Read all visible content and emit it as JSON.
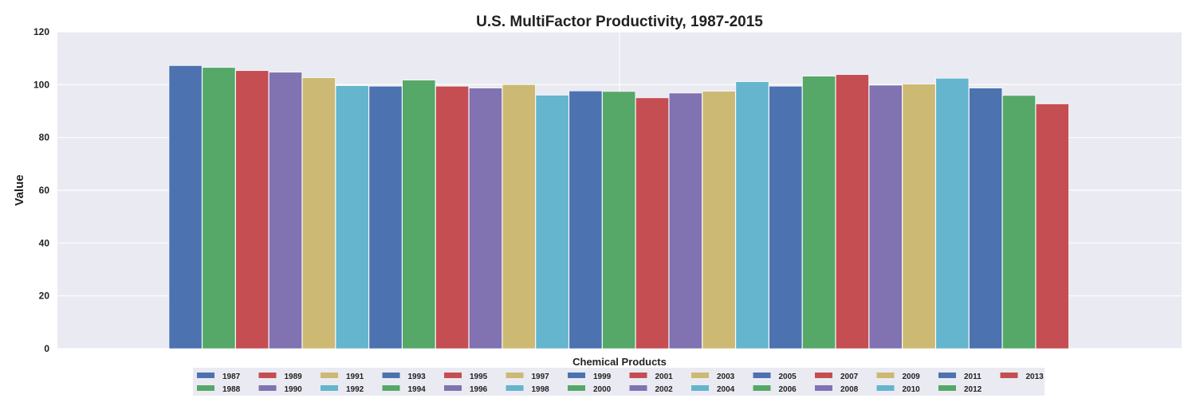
{
  "chart_data": {
    "type": "bar",
    "title": "U.S. MultiFactor Productivity, 1987-2015",
    "xlabel": "Chemical Products",
    "ylabel": "Value",
    "ylim": [
      0,
      120
    ],
    "yticks": [
      0,
      20,
      40,
      60,
      80,
      100,
      120
    ],
    "grid": true,
    "legend_position": "bottom",
    "series": [
      {
        "name": "1987",
        "values": [
          107.2
        ],
        "color": "#4c72b0"
      },
      {
        "name": "1988",
        "values": [
          106.5
        ],
        "color": "#55a868"
      },
      {
        "name": "1989",
        "values": [
          105.3
        ],
        "color": "#c44e52"
      },
      {
        "name": "1990",
        "values": [
          104.7
        ],
        "color": "#8172b2"
      },
      {
        "name": "1991",
        "values": [
          102.6
        ],
        "color": "#ccb974"
      },
      {
        "name": "1992",
        "values": [
          99.6
        ],
        "color": "#64b5cd"
      },
      {
        "name": "1993",
        "values": [
          99.4
        ],
        "color": "#4c72b0"
      },
      {
        "name": "1994",
        "values": [
          101.7
        ],
        "color": "#55a868"
      },
      {
        "name": "1995",
        "values": [
          99.4
        ],
        "color": "#c44e52"
      },
      {
        "name": "1996",
        "values": [
          98.7
        ],
        "color": "#8172b2"
      },
      {
        "name": "1997",
        "values": [
          100.0
        ],
        "color": "#ccb974"
      },
      {
        "name": "1998",
        "values": [
          96.0
        ],
        "color": "#64b5cd"
      },
      {
        "name": "1999",
        "values": [
          97.6
        ],
        "color": "#4c72b0"
      },
      {
        "name": "2000",
        "values": [
          97.4
        ],
        "color": "#55a868"
      },
      {
        "name": "2001",
        "values": [
          95.0
        ],
        "color": "#c44e52"
      },
      {
        "name": "2002",
        "values": [
          96.8
        ],
        "color": "#8172b2"
      },
      {
        "name": "2003",
        "values": [
          97.5
        ],
        "color": "#ccb974"
      },
      {
        "name": "2004",
        "values": [
          101.1
        ],
        "color": "#64b5cd"
      },
      {
        "name": "2005",
        "values": [
          99.4
        ],
        "color": "#4c72b0"
      },
      {
        "name": "2006",
        "values": [
          103.2
        ],
        "color": "#55a868"
      },
      {
        "name": "2007",
        "values": [
          103.8
        ],
        "color": "#c44e52"
      },
      {
        "name": "2008",
        "values": [
          99.8
        ],
        "color": "#8172b2"
      },
      {
        "name": "2009",
        "values": [
          100.2
        ],
        "color": "#ccb974"
      },
      {
        "name": "2010",
        "values": [
          102.4
        ],
        "color": "#64b5cd"
      },
      {
        "name": "2011",
        "values": [
          98.7
        ],
        "color": "#4c72b0"
      },
      {
        "name": "2012",
        "values": [
          95.9
        ],
        "color": "#55a868"
      },
      {
        "name": "2013",
        "values": [
          92.7
        ],
        "color": "#c44e52"
      }
    ]
  }
}
